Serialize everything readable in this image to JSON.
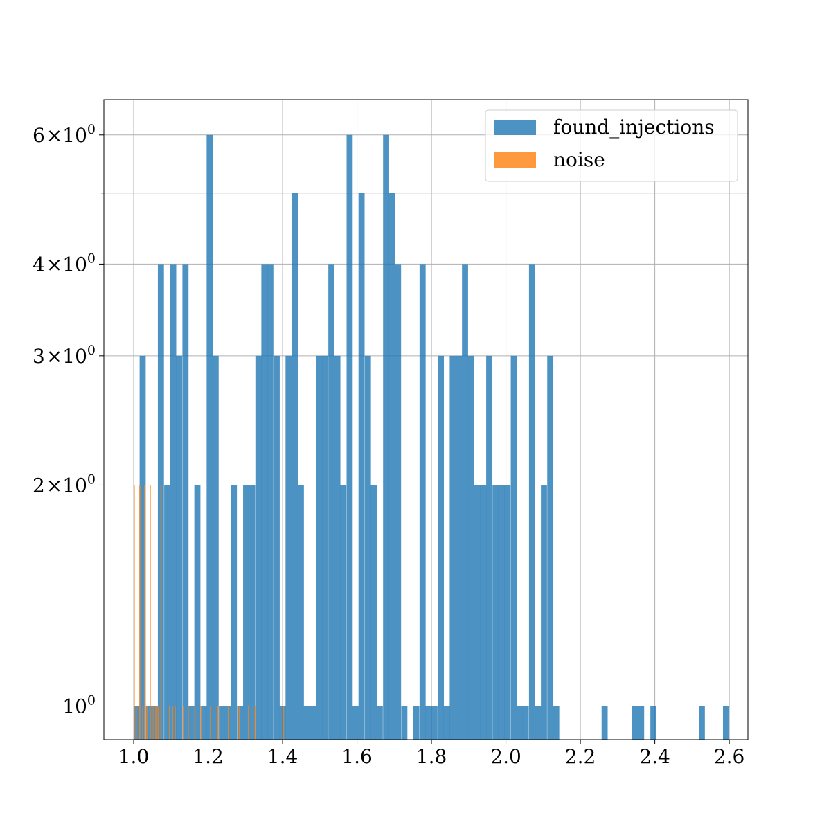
{
  "chart_data": {
    "type": "bar",
    "title": "",
    "xlabel": "",
    "ylabel": "",
    "y_scale": "log",
    "grid": true,
    "legend_position": "top-right",
    "xlim": [
      0.92,
      2.65
    ],
    "ylim": [
      0.9,
      6.7
    ],
    "bin_width": 0.01635,
    "x_ticks": [
      1.0,
      1.2,
      1.4,
      1.6,
      1.8,
      2.0,
      2.2,
      2.4,
      2.6
    ],
    "x_tick_labels": [
      "1.0",
      "1.2",
      "1.4",
      "1.6",
      "1.8",
      "2.0",
      "2.2",
      "2.4",
      "2.6"
    ],
    "y_ticks": [
      {
        "value": 1,
        "base": "10",
        "exp": "0"
      },
      {
        "value": 2,
        "mant": "2",
        "base": "10",
        "exp": "0"
      },
      {
        "value": 3,
        "mant": "3",
        "base": "10",
        "exp": "0"
      },
      {
        "value": 4,
        "mant": "4",
        "base": "10",
        "exp": "0"
      },
      {
        "value": 6,
        "mant": "6",
        "base": "10",
        "exp": "0"
      }
    ],
    "y_minor_gridlines": [
      5
    ],
    "series": [
      {
        "name": "found_injections",
        "color": "#1f77b4",
        "alpha": 0.8,
        "bins": [
          [
            1.0,
            1
          ],
          [
            1.016,
            3
          ],
          [
            1.033,
            1
          ],
          [
            1.049,
            1
          ],
          [
            1.065,
            4
          ],
          [
            1.082,
            2
          ],
          [
            1.098,
            4
          ],
          [
            1.114,
            3
          ],
          [
            1.131,
            4
          ],
          [
            1.147,
            1
          ],
          [
            1.163,
            2
          ],
          [
            1.18,
            1
          ],
          [
            1.196,
            6
          ],
          [
            1.212,
            3
          ],
          [
            1.229,
            1
          ],
          [
            1.245,
            1
          ],
          [
            1.261,
            2
          ],
          [
            1.278,
            1
          ],
          [
            1.294,
            2
          ],
          [
            1.31,
            2
          ],
          [
            1.327,
            3
          ],
          [
            1.343,
            4
          ],
          [
            1.359,
            4
          ],
          [
            1.376,
            3
          ],
          [
            1.392,
            1
          ],
          [
            1.408,
            3
          ],
          [
            1.425,
            5
          ],
          [
            1.441,
            2
          ],
          [
            1.457,
            1
          ],
          [
            1.474,
            1
          ],
          [
            1.49,
            3
          ],
          [
            1.506,
            3
          ],
          [
            1.523,
            4
          ],
          [
            1.539,
            3
          ],
          [
            1.555,
            2
          ],
          [
            1.572,
            6
          ],
          [
            1.588,
            1
          ],
          [
            1.604,
            5
          ],
          [
            1.621,
            3
          ],
          [
            1.637,
            2
          ],
          [
            1.653,
            1
          ],
          [
            1.67,
            6
          ],
          [
            1.686,
            5
          ],
          [
            1.702,
            4
          ],
          [
            1.719,
            1
          ],
          [
            1.751,
            1
          ],
          [
            1.768,
            4
          ],
          [
            1.784,
            1
          ],
          [
            1.8,
            1
          ],
          [
            1.817,
            3
          ],
          [
            1.833,
            1
          ],
          [
            1.849,
            3
          ],
          [
            1.866,
            3
          ],
          [
            1.882,
            4
          ],
          [
            1.898,
            3
          ],
          [
            1.915,
            2
          ],
          [
            1.931,
            2
          ],
          [
            1.947,
            3
          ],
          [
            1.964,
            2
          ],
          [
            1.98,
            2
          ],
          [
            1.996,
            2
          ],
          [
            2.013,
            3
          ],
          [
            2.029,
            1
          ],
          [
            2.045,
            1
          ],
          [
            2.062,
            4
          ],
          [
            2.078,
            1
          ],
          [
            2.094,
            2
          ],
          [
            2.111,
            3
          ],
          [
            2.127,
            1
          ],
          [
            2.257,
            1
          ],
          [
            2.339,
            1
          ],
          [
            2.355,
            1
          ],
          [
            2.388,
            1
          ],
          [
            2.518,
            1
          ],
          [
            2.583,
            1
          ]
        ]
      },
      {
        "name": "noise",
        "color": "#ff7f0e",
        "alpha": 0.8,
        "bars": [
          [
            1.0,
            2
          ],
          [
            1.005,
            1
          ],
          [
            1.015,
            2
          ],
          [
            1.023,
            1
          ],
          [
            1.028,
            2
          ],
          [
            1.034,
            1
          ],
          [
            1.043,
            2
          ],
          [
            1.048,
            1
          ],
          [
            1.053,
            1
          ],
          [
            1.058,
            1
          ],
          [
            1.064,
            1
          ],
          [
            1.072,
            2
          ],
          [
            1.095,
            1
          ],
          [
            1.103,
            1
          ],
          [
            1.11,
            1
          ],
          [
            1.132,
            1
          ],
          [
            1.145,
            1
          ],
          [
            1.163,
            1
          ],
          [
            1.18,
            1
          ],
          [
            1.205,
            1
          ],
          [
            1.225,
            1
          ],
          [
            1.253,
            1
          ],
          [
            1.282,
            1
          ],
          [
            1.307,
            1
          ],
          [
            1.325,
            1
          ],
          [
            1.401,
            1
          ]
        ],
        "bar_width": 0.003
      }
    ]
  }
}
